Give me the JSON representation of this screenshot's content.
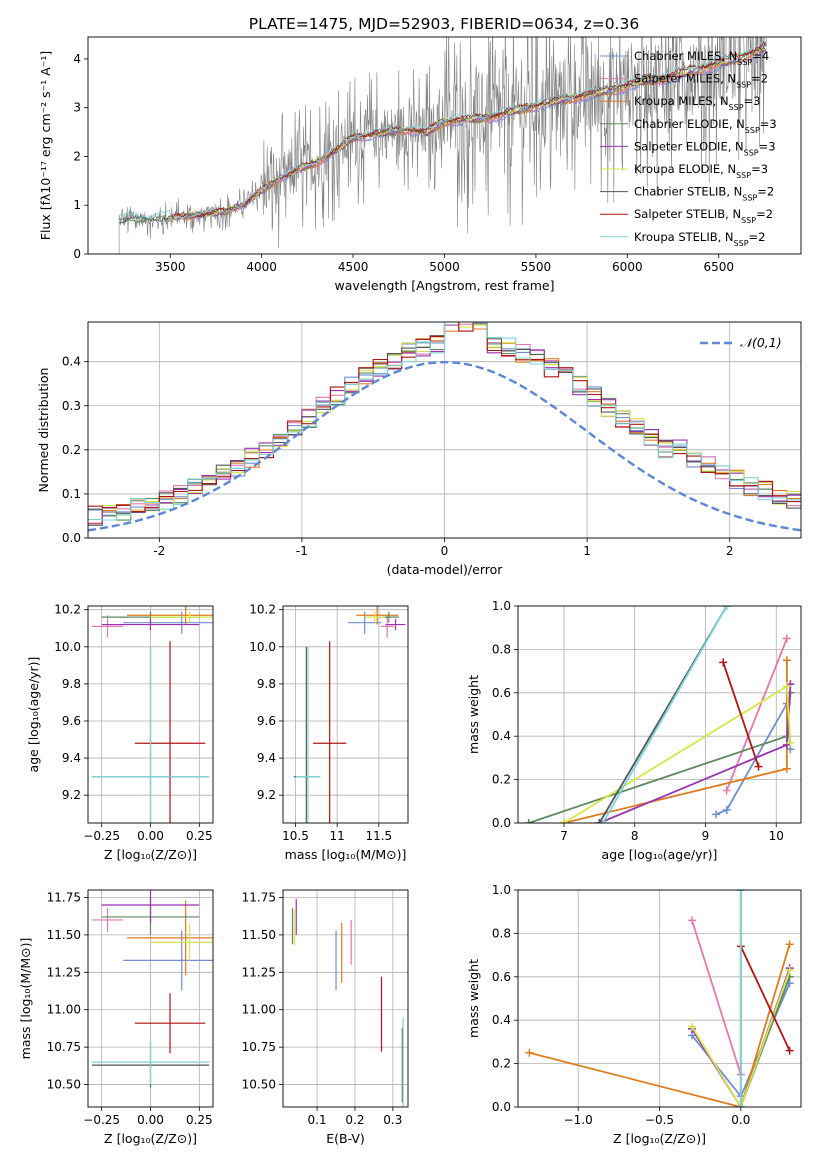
{
  "title": "PLATE=1475, MJD=52903, FIBERID=0634, z=0.36",
  "colors": {
    "Chabrier MILES": "#6f8fd3",
    "Salpeter MILES": "#e07ab0",
    "Kroupa MILES": "#e07b20",
    "Chabrier ELODIE": "#5e8a5e",
    "Salpeter ELODIE": "#9a32b4",
    "Kroupa ELODIE": "#d6e64a",
    "Chabrier STELIB": "#555555",
    "Salpeter STELIB": "#b01414",
    "Kroupa STELIB": "#7fd3d8",
    "data": "#808080",
    "normal": "#5b87d6"
  },
  "chart_data": [
    {
      "name": "spectrum",
      "type": "line",
      "xlabel": "wavelength [Angstrom, rest frame]",
      "ylabel": "Flux [f_λ 10^-17 erg cm^-2 s^-1 A^-1]",
      "xlim": [
        3050,
        6950
      ],
      "ylim": [
        0,
        4.45
      ],
      "xticks": [
        3500,
        4000,
        4500,
        5000,
        5500,
        6000,
        6500
      ],
      "yticks": [
        0,
        1,
        2,
        3,
        4
      ],
      "legend": "upper right",
      "legend_labels": [
        {
          "model": "Chabrier MILES",
          "label": "Chabrier MILES, N_SSP=4"
        },
        {
          "model": "Salpeter MILES",
          "label": "Salpeter MILES, N_SSP=2"
        },
        {
          "model": "Kroupa MILES",
          "label": "Kroupa MILES, N_SSP=3"
        },
        {
          "model": "Chabrier ELODIE",
          "label": "Chabrier ELODIE, N_SSP=3"
        },
        {
          "model": "Salpeter ELODIE",
          "label": "Salpeter ELODIE, N_SSP=3"
        },
        {
          "model": "Kroupa ELODIE",
          "label": "Kroupa ELODIE, N_SSP=3"
        },
        {
          "model": "Chabrier STELIB",
          "label": "Chabrier STELIB, N_SSP=2"
        },
        {
          "model": "Salpeter STELIB",
          "label": "Salpeter STELIB, N_SSP=2"
        },
        {
          "model": "Kroupa STELIB",
          "label": "Kroupa STELIB, N_SSP=2"
        }
      ],
      "model_continuum": {
        "x": [
          3220,
          3300,
          3400,
          3500,
          3600,
          3700,
          3800,
          3900,
          4000,
          4100,
          4200,
          4300,
          4400,
          4500,
          4600,
          4700,
          4800,
          4900,
          5000,
          5100,
          5200,
          5300,
          5400,
          5500,
          5600,
          5700,
          5800,
          5900,
          6000,
          6100,
          6200,
          6300,
          6400,
          6500,
          6600,
          6700,
          6750
        ],
        "y": [
          0.68,
          0.72,
          0.7,
          0.74,
          0.78,
          0.82,
          0.88,
          1.0,
          1.3,
          1.55,
          1.72,
          1.88,
          2.1,
          2.38,
          2.45,
          2.5,
          2.55,
          2.48,
          2.72,
          2.75,
          2.78,
          2.85,
          2.95,
          3.05,
          3.12,
          3.2,
          3.28,
          3.35,
          3.45,
          3.55,
          3.6,
          3.7,
          3.8,
          3.9,
          4.0,
          4.15,
          4.22
        ]
      }
    },
    {
      "name": "residual-histogram",
      "type": "histogram",
      "xlabel": "(data-model)/error",
      "ylabel": "Normed distribution",
      "xlim": [
        -2.5,
        2.5
      ],
      "ylim": [
        0,
        0.49
      ],
      "xticks": [
        -2,
        -1,
        0,
        1,
        2
      ],
      "yticks": [
        0.0,
        0.1,
        0.2,
        0.3,
        0.4
      ],
      "reference_label": "𝒩(0,1)",
      "legend": "upper right",
      "bin_width": 0.1,
      "mean_profile": [
        0.03,
        0.03,
        0.04,
        0.06,
        0.08,
        0.07,
        0.09,
        0.08,
        0.09,
        0.11,
        0.12,
        0.14,
        0.13,
        0.15,
        0.17,
        0.16,
        0.18,
        0.19,
        0.21,
        0.22,
        0.24,
        0.26,
        0.28,
        0.31,
        0.3,
        0.32,
        0.34,
        0.35,
        0.36,
        0.38,
        0.4,
        0.42,
        0.43,
        0.38,
        0.36,
        0.34,
        0.33,
        0.32,
        0.31,
        0.33,
        0.32,
        0.3,
        0.29,
        0.28,
        0.26,
        0.25,
        0.22,
        0.2,
        0.19,
        0.17,
        0.16,
        0.15,
        0.14,
        0.12,
        0.12,
        0.1,
        0.09,
        0.08,
        0.07,
        0.07,
        0.06,
        0.05,
        0.06,
        0.05,
        0.06,
        0.05,
        0.05,
        0.04,
        0.04,
        0.05,
        0.05,
        0.04,
        0.05,
        0.04,
        0.05,
        0.05,
        0.05,
        0.05,
        0.05,
        0.06,
        0.06,
        0.07,
        0.07,
        0.07,
        0.06,
        0.06,
        0.07,
        0.07,
        0.06,
        0.06,
        0.06,
        0.06,
        0.06,
        0.07,
        0.07,
        0.06,
        0.06,
        0.06,
        0.06,
        0.06
      ]
    },
    {
      "name": "age-vs-Z",
      "type": "errorbar",
      "xlabel": "Z [log10(Z/Z⊙)]",
      "ylabel": "age [log10(age/yr)]",
      "xlim": [
        -0.32,
        0.32
      ],
      "ylim": [
        9.05,
        10.22
      ],
      "xticks": [
        -0.25,
        0.0,
        0.25
      ],
      "xticklabels": [
        "−0.25",
        "0.00",
        "0.25"
      ],
      "yticks": [
        9.2,
        9.4,
        9.6,
        9.8,
        10.0,
        10.2
      ],
      "points": [
        {
          "model": "Chabrier MILES",
          "x": 0.16,
          "y": 10.13,
          "xerr": 0.3,
          "yerr": 0.06
        },
        {
          "model": "Salpeter MILES",
          "x": -0.22,
          "y": 10.11,
          "xerr": 0.08,
          "yerr": 0.06
        },
        {
          "model": "Kroupa MILES",
          "x": 0.18,
          "y": 10.17,
          "xerr": 0.3,
          "yerr": 0.05
        },
        {
          "model": "Chabrier ELODIE",
          "x": 0.0,
          "y": 10.16,
          "xerr": 0.25,
          "yerr": 0.03
        },
        {
          "model": "Salpeter ELODIE",
          "x": 0.0,
          "y": 10.12,
          "xerr": 0.25,
          "yerr": 0.03
        },
        {
          "model": "Kroupa ELODIE",
          "x": 0.2,
          "y": 10.16,
          "xerr": 0.2,
          "yerr": 0.03
        },
        {
          "model": "Chabrier STELIB",
          "x": 0.0,
          "y": 9.3,
          "xerr": 0.3,
          "yerr": 0.7
        },
        {
          "model": "Salpeter STELIB",
          "x": 0.1,
          "y": 9.48,
          "xerr": 0.18,
          "yerr": 0.55
        },
        {
          "model": "Kroupa STELIB",
          "x": 0.0,
          "y": 9.3,
          "xerr": 0.3,
          "yerr": 0.7
        }
      ]
    },
    {
      "name": "age-vs-mass",
      "type": "errorbar",
      "xlabel": "mass [log10(M/M⊙)]",
      "xlim": [
        10.35,
        11.85
      ],
      "ylim": [
        9.05,
        10.22
      ],
      "xticks": [
        10.5,
        11.0,
        11.5
      ],
      "yticks": [
        9.2,
        9.4,
        9.6,
        9.8,
        10.0,
        10.2
      ],
      "points": [
        {
          "model": "Chabrier MILES",
          "x": 11.33,
          "y": 10.13,
          "xerr": 0.2,
          "yerr": 0.06
        },
        {
          "model": "Salpeter MILES",
          "x": 11.6,
          "y": 10.11,
          "xerr": 0.08,
          "yerr": 0.06
        },
        {
          "model": "Kroupa MILES",
          "x": 11.48,
          "y": 10.17,
          "xerr": 0.25,
          "yerr": 0.05
        },
        {
          "model": "Chabrier ELODIE",
          "x": 11.62,
          "y": 10.16,
          "xerr": 0.12,
          "yerr": 0.03
        },
        {
          "model": "Salpeter ELODIE",
          "x": 11.7,
          "y": 10.12,
          "xerr": 0.12,
          "yerr": 0.03
        },
        {
          "model": "Kroupa ELODIE",
          "x": 11.45,
          "y": 10.16,
          "xerr": 0.12,
          "yerr": 0.03
        },
        {
          "model": "Chabrier STELIB",
          "x": 10.63,
          "y": 9.3,
          "xerr": 0.15,
          "yerr": 0.7
        },
        {
          "model": "Salpeter STELIB",
          "x": 10.91,
          "y": 9.48,
          "xerr": 0.2,
          "yerr": 0.55
        },
        {
          "model": "Kroupa STELIB",
          "x": 10.65,
          "y": 9.3,
          "xerr": 0.15,
          "yerr": 0.7
        }
      ]
    },
    {
      "name": "mass-weight-vs-age",
      "type": "line",
      "xlabel": "age [log10(age/yr)]",
      "ylabel": "mass weight",
      "xlim": [
        6.35,
        10.35
      ],
      "ylim": [
        0,
        1.0
      ],
      "xticks": [
        7,
        8,
        9,
        10
      ],
      "yticks": [
        0.0,
        0.2,
        0.4,
        0.6,
        0.8,
        1.0
      ],
      "series": [
        {
          "model": "Chabrier MILES",
          "x": [
            9.15,
            9.3,
            10.15,
            10.2
          ],
          "y": [
            0.04,
            0.06,
            0.55,
            0.34
          ]
        },
        {
          "model": "Salpeter MILES",
          "x": [
            9.3,
            10.15
          ],
          "y": [
            0.15,
            0.85
          ]
        },
        {
          "model": "Kroupa MILES",
          "x": [
            7.0,
            10.15,
            10.15
          ],
          "y": [
            0.0,
            0.25,
            0.75
          ]
        },
        {
          "model": "Chabrier ELODIE",
          "x": [
            6.5,
            10.15,
            10.2
          ],
          "y": [
            0.0,
            0.4,
            0.6
          ]
        },
        {
          "model": "Salpeter ELODIE",
          "x": [
            7.5,
            10.15,
            10.2
          ],
          "y": [
            0.0,
            0.36,
            0.64
          ]
        },
        {
          "model": "Kroupa ELODIE",
          "x": [
            7.0,
            10.15,
            10.2
          ],
          "y": [
            0.0,
            0.63,
            0.37
          ]
        },
        {
          "model": "Chabrier STELIB",
          "x": [
            7.5,
            9.3
          ],
          "y": [
            0.0,
            1.0
          ]
        },
        {
          "model": "Salpeter STELIB",
          "x": [
            9.25,
            9.75
          ],
          "y": [
            0.74,
            0.26
          ]
        },
        {
          "model": "Kroupa STELIB",
          "x": [
            7.55,
            9.3
          ],
          "y": [
            0.0,
            1.0
          ]
        }
      ]
    },
    {
      "name": "mass-vs-Z",
      "type": "errorbar",
      "xlabel": "Z [log10(Z/Z⊙)]",
      "ylabel": "mass [log10(M/M⊙)]",
      "xlim": [
        -0.32,
        0.32
      ],
      "ylim": [
        10.35,
        11.8
      ],
      "xticks": [
        -0.25,
        0.0,
        0.25
      ],
      "xticklabels": [
        "−0.25",
        "0.00",
        "0.25"
      ],
      "yticks": [
        10.5,
        10.75,
        11.0,
        11.25,
        11.5,
        11.75
      ],
      "yticklabels": [
        "10.50",
        "10.75",
        "11.00",
        "11.25",
        "11.50",
        "11.75"
      ],
      "points": [
        {
          "model": "Chabrier MILES",
          "x": 0.16,
          "y": 11.33,
          "xerr": 0.3,
          "yerr": 0.2
        },
        {
          "model": "Salpeter MILES",
          "x": -0.22,
          "y": 11.6,
          "xerr": 0.08,
          "yerr": 0.08
        },
        {
          "model": "Kroupa MILES",
          "x": 0.18,
          "y": 11.48,
          "xerr": 0.3,
          "yerr": 0.25
        },
        {
          "model": "Chabrier ELODIE",
          "x": 0.0,
          "y": 11.62,
          "xerr": 0.25,
          "yerr": 0.12
        },
        {
          "model": "Salpeter ELODIE",
          "x": 0.0,
          "y": 11.7,
          "xerr": 0.25,
          "yerr": 0.12
        },
        {
          "model": "Kroupa ELODIE",
          "x": 0.2,
          "y": 11.45,
          "xerr": 0.2,
          "yerr": 0.12
        },
        {
          "model": "Chabrier STELIB",
          "x": 0.0,
          "y": 10.63,
          "xerr": 0.3,
          "yerr": 0.15
        },
        {
          "model": "Salpeter STELIB",
          "x": 0.1,
          "y": 10.91,
          "xerr": 0.18,
          "yerr": 0.2
        },
        {
          "model": "Kroupa STELIB",
          "x": 0.0,
          "y": 10.65,
          "xerr": 0.3,
          "yerr": 0.15
        }
      ]
    },
    {
      "name": "mass-vs-ebv",
      "type": "errorbar",
      "xlabel": "E(B-V)",
      "xlim": [
        0.01,
        0.34
      ],
      "ylim": [
        10.35,
        11.8
      ],
      "xticks": [
        0.1,
        0.2,
        0.3
      ],
      "yticks": [
        10.5,
        10.75,
        11.0,
        11.25,
        11.5,
        11.75
      ],
      "yticklabels": [
        "10.50",
        "10.75",
        "11.00",
        "11.25",
        "11.50",
        "11.75"
      ],
      "points": [
        {
          "model": "Chabrier MILES",
          "x": 0.15,
          "y": 11.33,
          "xerr": 0.0,
          "yerr": 0.2
        },
        {
          "model": "Salpeter MILES",
          "x": 0.19,
          "y": 11.45,
          "xerr": 0.0,
          "yerr": 0.15
        },
        {
          "model": "Kroupa MILES",
          "x": 0.165,
          "y": 11.38,
          "xerr": 0.0,
          "yerr": 0.2
        },
        {
          "model": "Chabrier ELODIE",
          "x": 0.035,
          "y": 11.56,
          "xerr": 0.0,
          "yerr": 0.12
        },
        {
          "model": "Salpeter ELODIE",
          "x": 0.045,
          "y": 11.62,
          "xerr": 0.0,
          "yerr": 0.12
        },
        {
          "model": "Kroupa ELODIE",
          "x": 0.04,
          "y": 11.55,
          "xerr": 0.0,
          "yerr": 0.12
        },
        {
          "model": "Chabrier STELIB",
          "x": 0.325,
          "y": 10.63,
          "xerr": 0.0,
          "yerr": 0.25
        },
        {
          "model": "Salpeter STELIB",
          "x": 0.27,
          "y": 10.97,
          "xerr": 0.0,
          "yerr": 0.25
        },
        {
          "model": "Kroupa STELIB",
          "x": 0.327,
          "y": 10.65,
          "xerr": 0.0,
          "yerr": 0.3
        }
      ]
    },
    {
      "name": "mass-weight-vs-Z",
      "type": "line",
      "xlabel": "Z [log10(Z/Z⊙)]",
      "ylabel": "mass weight",
      "xlim": [
        -1.37,
        0.37
      ],
      "ylim": [
        0,
        1.0
      ],
      "xticks": [
        -1.0,
        -0.5,
        0.0
      ],
      "xticklabels": [
        "−1.0",
        "−0.5",
        "0.0"
      ],
      "yticks": [
        0.0,
        0.2,
        0.4,
        0.6,
        0.8,
        1.0
      ],
      "series": [
        {
          "model": "Chabrier MILES",
          "x": [
            -0.3,
            0.0,
            0.3
          ],
          "y": [
            0.33,
            0.05,
            0.57
          ]
        },
        {
          "model": "Salpeter MILES",
          "x": [
            -0.3,
            0.0
          ],
          "y": [
            0.86,
            0.15
          ]
        },
        {
          "model": "Kroupa MILES",
          "x": [
            -1.3,
            0.0,
            0.3
          ],
          "y": [
            0.25,
            0.0,
            0.75
          ]
        },
        {
          "model": "Chabrier ELODIE",
          "x": [
            0.0,
            0.3
          ],
          "y": [
            0.0,
            0.6
          ]
        },
        {
          "model": "Salpeter ELODIE",
          "x": [
            -0.3,
            0.0,
            0.3
          ],
          "y": [
            0.36,
            0.0,
            0.64
          ]
        },
        {
          "model": "Kroupa ELODIE",
          "x": [
            -0.3,
            0.0,
            0.3
          ],
          "y": [
            0.37,
            0.0,
            0.63
          ]
        },
        {
          "model": "Chabrier STELIB",
          "x": [
            0.0,
            0.0
          ],
          "y": [
            0.0,
            1.0
          ]
        },
        {
          "model": "Salpeter STELIB",
          "x": [
            0.0,
            0.3
          ],
          "y": [
            0.74,
            0.26
          ]
        },
        {
          "model": "Kroupa STELIB",
          "x": [
            0.0,
            0.0
          ],
          "y": [
            0.0,
            1.0
          ]
        }
      ]
    }
  ]
}
